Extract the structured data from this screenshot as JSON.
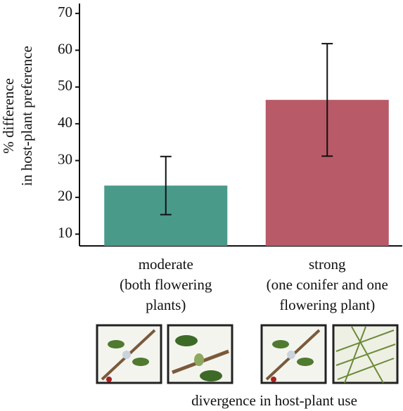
{
  "chart_data": {
    "type": "bar",
    "categories": [
      [
        "moderate",
        "(both flowering",
        "plants)"
      ],
      [
        "strong",
        "(one conifer and one",
        "flowering plant)"
      ]
    ],
    "values": [
      23.2,
      46.5
    ],
    "error": [
      7.9,
      15.3
    ],
    "colors": [
      "#4a9a8a",
      "#b85a68"
    ],
    "ylabel": [
      "% difference",
      "in host-plant preference"
    ],
    "xlabel": "divergence in host-plant use",
    "ylim": [
      6.8,
      72.7
    ],
    "yticks": [
      10,
      20,
      30,
      40,
      50,
      60,
      70
    ]
  }
}
